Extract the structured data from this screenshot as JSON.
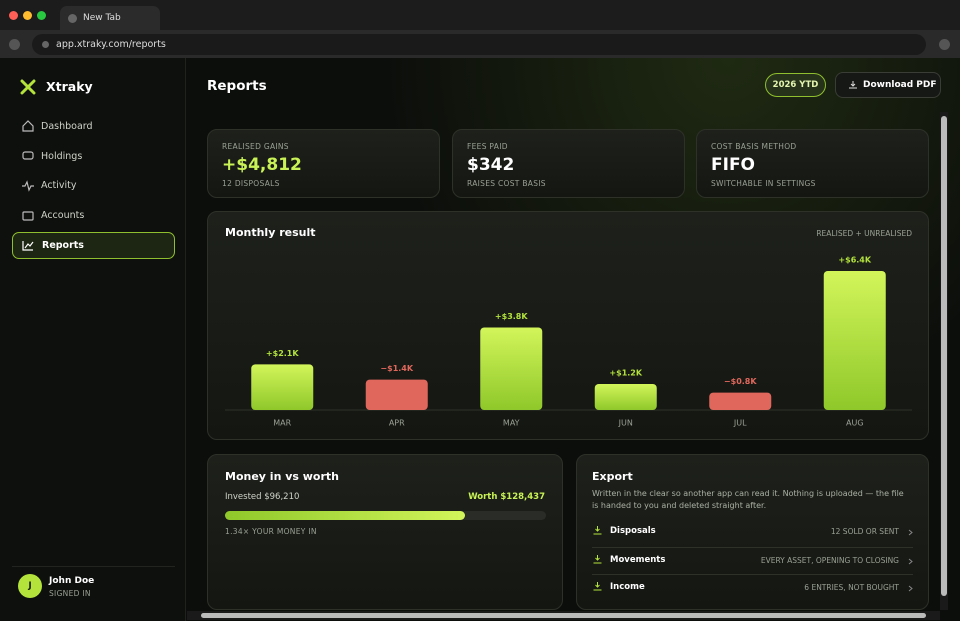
{
  "browser": {
    "tab_title": "New Tab",
    "url": "app.xtraky.com/reports"
  },
  "sidebar": {
    "brand": "Xtraky",
    "nav": [
      "Dashboard",
      "Holdings",
      "Activity",
      "Accounts",
      "Reports"
    ],
    "user": {
      "initial": "J",
      "name": "John Doe",
      "status": "SIGNED IN"
    }
  },
  "header": {
    "title": "Reports",
    "period": "2026 YTD",
    "download": "Download PDF"
  },
  "stats": [
    {
      "label": "REALISED GAINS",
      "value": "+$4,812",
      "note": "12 DISPOSALS"
    },
    {
      "label": "FEES PAID",
      "value": "$342",
      "note": "RAISES COST BASIS"
    },
    {
      "label": "COST BASIS METHOD",
      "value": "FIFO",
      "note": "SWITCHABLE IN SETTINGS"
    }
  ],
  "chart_data": {
    "type": "bar",
    "title": "Monthly result",
    "subtitle": "REALISED + UNREALISED",
    "categories": [
      "MAR",
      "APR",
      "MAY",
      "JUN",
      "JUL",
      "AUG"
    ],
    "values": [
      2.1,
      -1.4,
      3.8,
      1.2,
      -0.8,
      6.4
    ],
    "value_labels": [
      "+$2.1K",
      "−$1.4K",
      "+$3.8K",
      "+$1.2K",
      "−$0.8K",
      "+$6.4K"
    ],
    "positive_color": "#b4e43c",
    "negative_color": "#e0675c"
  },
  "money": {
    "title": "Money in vs worth",
    "invested": {
      "value": 96210,
      "label": "Invested $96,210"
    },
    "worth": {
      "value": 128437,
      "label": "Worth $128,437"
    },
    "ratio": "1.34× YOUR MONEY IN"
  },
  "export": {
    "title": "Export",
    "description": "Written in the clear so another app can read it. Nothing is uploaded — the file is handed to you and deleted straight after.",
    "items": [
      {
        "name": "Disposals",
        "detail": "12 SOLD OR SENT"
      },
      {
        "name": "Movements",
        "detail": "EVERY ASSET, OPENING TO CLOSING"
      },
      {
        "name": "Income",
        "detail": "6 ENTRIES, NOT BOUGHT"
      }
    ]
  }
}
